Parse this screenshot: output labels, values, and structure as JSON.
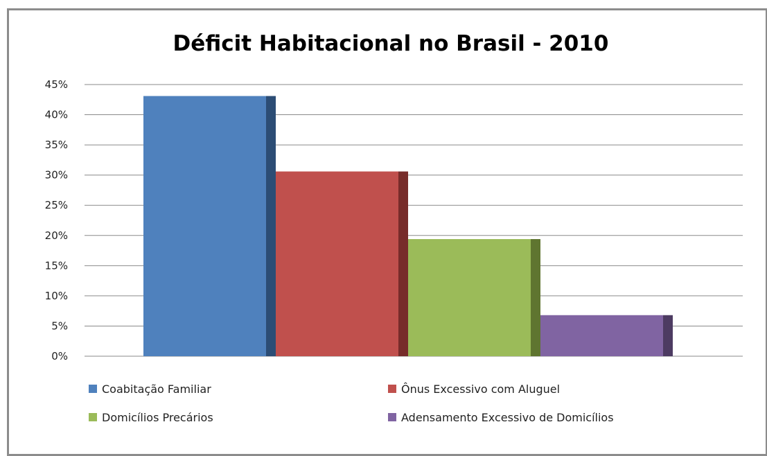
{
  "chart_data": {
    "type": "bar",
    "title": "Déficit Habitacional no Brasil - 2010",
    "xlabel": "",
    "ylabel": "",
    "ylim": [
      0,
      45
    ],
    "yticks": [
      "0%",
      "5%",
      "10%",
      "15%",
      "20%",
      "25%",
      "30%",
      "35%",
      "40%",
      "45%"
    ],
    "grid": true,
    "legend_position": "bottom",
    "series": [
      {
        "name": "Coabitação Familiar",
        "value": 43.1,
        "color": "#4f81bd",
        "side_color": "#2c4d75"
      },
      {
        "name": "Ônus Excessivo com Aluguel",
        "value": 30.6,
        "color": "#c0504d",
        "side_color": "#772c2a"
      },
      {
        "name": "Domicílios Precários",
        "value": 19.4,
        "color": "#9bbb59",
        "side_color": "#5f7530"
      },
      {
        "name": "Adensamento Excessivo de Domicílios",
        "value": 6.8,
        "color": "#8064a2",
        "side_color": "#4d3b62"
      }
    ]
  }
}
